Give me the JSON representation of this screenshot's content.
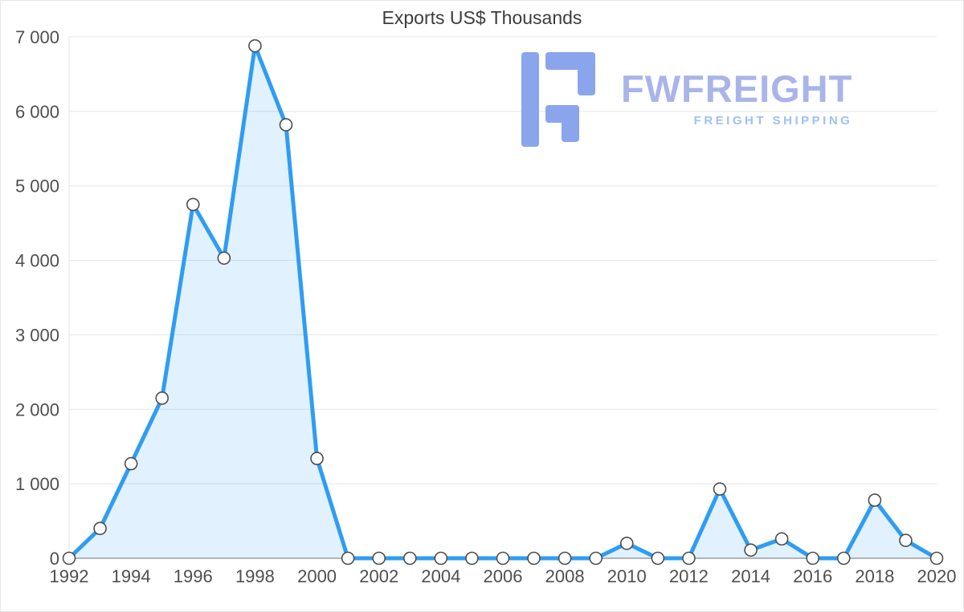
{
  "watermark": {
    "text": "FWFREIGHT",
    "subtitle": "FREIGHT SHIPPING",
    "colors": {
      "glyph": "#8aa5ec",
      "text": "#a9b4e9",
      "subtitle": "#9fc0f2"
    }
  },
  "chart_data": {
    "type": "area",
    "title": "Exports US$ Thousands",
    "xlabel": "",
    "ylabel": "",
    "x": [
      1992,
      1993,
      1994,
      1995,
      1996,
      1997,
      1998,
      1999,
      2000,
      2001,
      2002,
      2003,
      2004,
      2005,
      2006,
      2007,
      2008,
      2009,
      2010,
      2011,
      2012,
      2013,
      2014,
      2015,
      2016,
      2017,
      2018,
      2019,
      2020
    ],
    "values": [
      0,
      400,
      1270,
      2150,
      4750,
      4030,
      6880,
      5820,
      1340,
      0,
      0,
      0,
      0,
      0,
      0,
      0,
      0,
      0,
      200,
      0,
      0,
      930,
      110,
      260,
      0,
      0,
      780,
      240,
      0
    ],
    "ylim": [
      0,
      7000
    ],
    "ytick_interval": 1000,
    "ytick_labels": [
      "0",
      "1 000",
      "2 000",
      "3 000",
      "4 000",
      "5 000",
      "6 000",
      "7 000"
    ],
    "xtick_labels": [
      "1992",
      "1994",
      "1996",
      "1998",
      "2000",
      "2002",
      "2004",
      "2006",
      "2008",
      "2010",
      "2012",
      "2014",
      "2016",
      "2018",
      "2020"
    ],
    "grid": "horizontal",
    "legend": "none",
    "marker": "circle",
    "colors": {
      "line": "#2e9df3",
      "area": "rgba(45,157,243,0.14)",
      "marker_fill": "#ffffff",
      "marker_stroke": "#4d4d4d",
      "grid": "#e5e5e5",
      "axis_line": "#9e9e9e",
      "axis_text": "#4f4f4f",
      "title_text": "#3d3d3d"
    }
  }
}
